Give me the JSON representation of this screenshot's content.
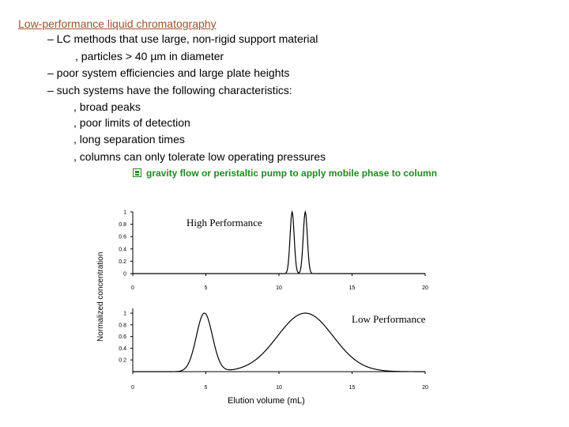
{
  "slide": {
    "title": "Low-performance liquid chromatography",
    "bullets": [
      "– LC methods that use large, non-rigid support material",
      ", particles > 40 µm in diameter",
      "– poor system efficiencies and large plate heights",
      "– such systems have the following characteristics:",
      ", broad peaks",
      ", poor limits of detection",
      ",   long separation times",
      ",   columns can only tolerate low operating pressures",
      "gravity flow or peristaltic pump to apply mobile phase to column"
    ],
    "bullet_icon": "floppy-square-icon",
    "accent_title": "#a0522d",
    "accent_green": "#1e8b1e"
  },
  "chart_data": [
    {
      "type": "line",
      "label": "High Performance",
      "xlim": [
        0,
        20
      ],
      "ylim": [
        0,
        1
      ],
      "x_ticks": [
        "0",
        "5",
        "10",
        "15",
        "20"
      ],
      "y_ticks": [
        "0",
        "0.2",
        "0.4",
        "0.6",
        "0.8",
        "1"
      ],
      "peaks": [
        {
          "center": 10.9,
          "height": 1.0,
          "width": 0.14
        },
        {
          "center": 11.8,
          "height": 1.0,
          "width": 0.14
        }
      ],
      "ylabel": "Normalized concentration"
    },
    {
      "type": "line",
      "label": "Low Performance",
      "xlim": [
        0,
        20
      ],
      "ylim": [
        0,
        1
      ],
      "x_ticks": [
        "0",
        "5",
        "10",
        "15",
        "20"
      ],
      "y_ticks": [
        "0.2",
        "0.4",
        "0.6",
        "0.8",
        "1"
      ],
      "peaks": [
        {
          "center": 4.9,
          "height": 1.0,
          "width": 0.55
        },
        {
          "center": 11.8,
          "height": 1.0,
          "width": 1.9
        }
      ],
      "xlabel": "Elution volume (mL)"
    }
  ]
}
